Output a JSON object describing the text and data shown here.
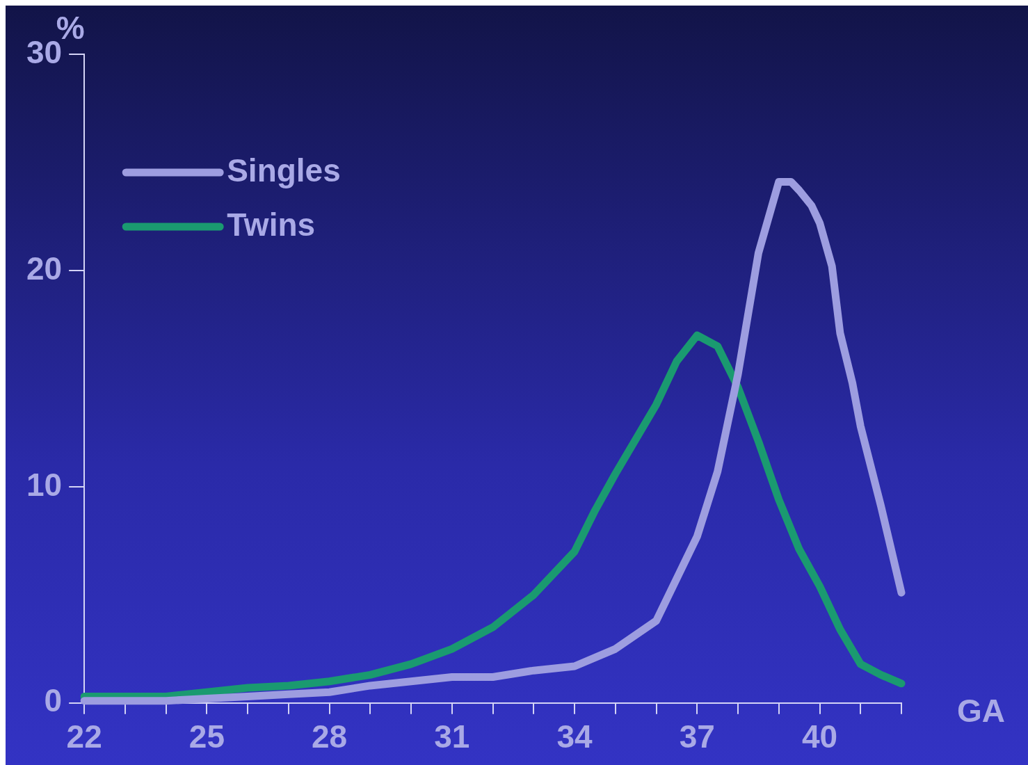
{
  "chart_data": {
    "type": "line",
    "xlabel": "GA",
    "ylabel": "%",
    "xlim": [
      22,
      42
    ],
    "xticks": [
      22,
      {
        "value": 23,
        "label": null
      },
      {
        "value": 24,
        "label": null
      },
      25,
      {
        "value": 26,
        "label": null
      },
      {
        "value": 27,
        "label": null
      },
      28,
      {
        "value": 29,
        "label": null
      },
      {
        "value": 30,
        "label": null
      },
      31,
      {
        "value": 32,
        "label": null
      },
      {
        "value": 33,
        "label": null
      },
      34,
      {
        "value": 35,
        "label": null
      },
      {
        "value": 36,
        "label": null
      },
      37,
      {
        "value": 38,
        "label": null
      },
      {
        "value": 39,
        "label": null
      },
      40,
      {
        "value": 41,
        "label": null
      },
      {
        "value": 42,
        "label": null
      }
    ],
    "ylim": [
      0,
      30
    ],
    "yticks": [
      0,
      10,
      20,
      30
    ],
    "grid": false,
    "legend": "top left",
    "marker": "none",
    "line_style": "solid",
    "series": [
      {
        "name": "Singles",
        "color": "#9d9de0",
        "x": [
          22,
          23,
          24,
          25,
          26,
          27,
          28,
          29,
          30,
          31,
          32,
          33,
          34,
          35,
          36,
          37,
          37.5,
          38,
          38.5,
          39,
          39.3,
          39.5,
          39.8,
          40,
          40.3,
          40.5,
          40.8,
          41,
          41.5,
          42
        ],
        "values": [
          0.1,
          0.1,
          0.1,
          0.2,
          0.3,
          0.4,
          0.5,
          0.8,
          1.0,
          1.2,
          1.2,
          1.5,
          1.7,
          2.5,
          3.8,
          7.7,
          10.7,
          15.2,
          20.8,
          24.1,
          24.1,
          23.7,
          23.0,
          22.2,
          20.2,
          17.1,
          14.8,
          12.8,
          9.1,
          5.1
        ]
      },
      {
        "name": "Twins",
        "color": "#1a9a70",
        "x": [
          22,
          23,
          24,
          25,
          26,
          27,
          28,
          29,
          30,
          31,
          32,
          33,
          34,
          34.5,
          35,
          36,
          36.5,
          37,
          37.5,
          38,
          38.5,
          39,
          39.5,
          40,
          40.5,
          41,
          41.5,
          42
        ],
        "values": [
          0.3,
          0.3,
          0.3,
          0.5,
          0.7,
          0.8,
          1.0,
          1.3,
          1.8,
          2.5,
          3.5,
          5.0,
          7.0,
          8.9,
          10.6,
          13.8,
          15.8,
          17.0,
          16.5,
          14.6,
          12.1,
          9.4,
          7.1,
          5.4,
          3.4,
          1.8,
          1.3,
          0.9
        ]
      }
    ]
  }
}
